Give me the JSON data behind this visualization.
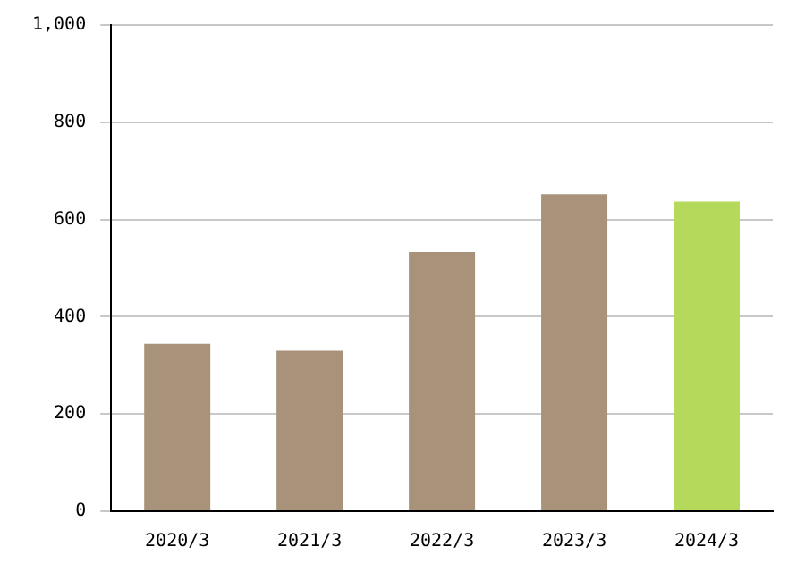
{
  "chart_data": {
    "type": "bar",
    "categories": [
      "2020/3",
      "2021/3",
      "2022/3",
      "2023/3",
      "2024/3"
    ],
    "values": [
      344,
      330,
      533,
      652,
      637
    ],
    "colors": [
      "#a89279",
      "#a89279",
      "#a89279",
      "#a89279",
      "#b5d95a"
    ],
    "ylim": [
      0,
      1000
    ],
    "yticks": [
      0,
      200,
      400,
      600,
      800,
      {
        "value": 1000,
        "label": "1,000"
      }
    ],
    "grid": "y"
  }
}
